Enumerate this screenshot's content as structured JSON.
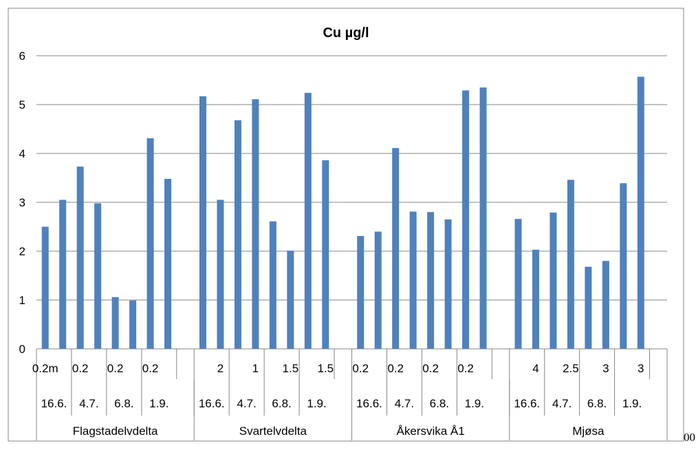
{
  "corner_text": "00",
  "chart_data": {
    "type": "bar",
    "title": "Cu µg/l",
    "xlabel": "",
    "ylabel": "",
    "ylim": [
      0,
      6
    ],
    "yticks": [
      "0",
      "1",
      "2",
      "3",
      "4",
      "5",
      "6"
    ],
    "grid": true,
    "legend": "none",
    "bar_color": "#4f81bd",
    "categories": [
      "Flagstadelvdelta 16.6. 0.2m",
      "Flagstadelvdelta 16.6.",
      "Flagstadelvdelta 4.7. 0.2",
      "Flagstadelvdelta 4.7.",
      "Flagstadelvdelta 6.8. 0.2",
      "Flagstadelvdelta 6.8.",
      "Flagstadelvdelta 1.9. 0.2",
      "Flagstadelvdelta 1.9.",
      "Svartelvdelta 16.6.",
      "Svartelvdelta 16.6. 2",
      "Svartelvdelta 4.7.",
      "Svartelvdelta 4.7. 1",
      "Svartelvdelta 6.8.",
      "Svartelvdelta 6.8. 1.5",
      "Svartelvdelta 1.9.",
      "Svartelvdelta 1.9. 1.5",
      "Åkersvika Å1 16.6. 0.2",
      "Åkersvika Å1 16.6.",
      "Åkersvika Å1 4.7. 0.2",
      "Åkersvika Å1 4.7.",
      "Åkersvika Å1 6.8. 0.2",
      "Åkersvika Å1 6.8.",
      "Åkersvika Å1 1.9. 0.2",
      "Åkersvika Å1 1.9.",
      "Mjøsa 16.6.",
      "Mjøsa 16.6. 4",
      "Mjøsa 4.7.",
      "Mjøsa 4.7. 2.5",
      "Mjøsa 6.8.",
      "Mjøsa 6.8. 3",
      "Mjøsa 1.9.",
      "Mjøsa 1.9. 3"
    ],
    "values": [
      2.5,
      3.05,
      3.73,
      2.98,
      1.06,
      0.99,
      4.31,
      3.48,
      5.17,
      3.05,
      4.68,
      5.11,
      2.61,
      2.01,
      5.24,
      3.86,
      2.31,
      2.4,
      4.11,
      2.81,
      2.8,
      2.65,
      5.29,
      5.35,
      2.66,
      2.03,
      2.79,
      3.46,
      1.68,
      1.8,
      3.39,
      5.57
    ],
    "level1_labels": [
      "0.2m",
      "",
      "0.2",
      "",
      "0.2",
      "",
      "0.2",
      "",
      "",
      "2",
      "",
      "1",
      "",
      "1.5",
      "",
      "1.5",
      "0.2",
      "",
      "0.2",
      "",
      "0.2",
      "",
      "0.2",
      "",
      "",
      "4",
      "",
      "2.5",
      "",
      "3",
      "",
      "3"
    ],
    "level2_labels": [
      "16.6.",
      "4.7.",
      "6.8.",
      "1.9.",
      "16.6.",
      "4.7.",
      "6.8.",
      "1.9.",
      "16.6.",
      "4.7.",
      "6.8.",
      "1.9.",
      "16.6.",
      "4.7.",
      "6.8.",
      "1.9."
    ],
    "level3_labels": [
      "Flagstadelvdelta",
      "Svartelvdelta",
      "Åkersvika Å1",
      "Mjøsa"
    ]
  }
}
